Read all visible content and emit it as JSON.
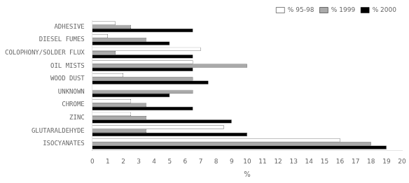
{
  "chart_data": {
    "type": "bar",
    "orientation": "horizontal",
    "categories": [
      "ISOCYANATES",
      "GLUTARALDEHYDE",
      "ZINC",
      "CHROME",
      "UNKNOWN",
      "WOOD DUST",
      "OIL MISTS",
      "COLOPHONY/SOLDER FLUX",
      "DIESEL FUMES",
      "ADHESIVE"
    ],
    "series": [
      {
        "name": "% 95-98",
        "color": "#ffffff",
        "values": [
          16.0,
          8.5,
          2.5,
          2.5,
          0.0,
          2.0,
          6.5,
          7.0,
          1.0,
          1.5
        ]
      },
      {
        "name": "% 1999",
        "color": "#aaaaaa",
        "values": [
          18.0,
          3.5,
          3.5,
          3.5,
          6.5,
          6.5,
          10.0,
          1.5,
          3.5,
          2.5
        ]
      },
      {
        "name": "% 2000",
        "color": "#000000",
        "values": [
          19.0,
          10.0,
          9.0,
          6.5,
          5.0,
          7.5,
          6.5,
          6.5,
          5.0,
          6.5
        ]
      }
    ],
    "xlabel": "%",
    "xlim": [
      0,
      20
    ],
    "xticks": [
      0,
      1,
      2,
      3,
      4,
      5,
      6,
      7,
      8,
      9,
      10,
      11,
      12,
      13,
      14,
      15,
      16,
      17,
      18,
      19,
      20
    ],
    "legend": "upper right",
    "grid": false
  }
}
